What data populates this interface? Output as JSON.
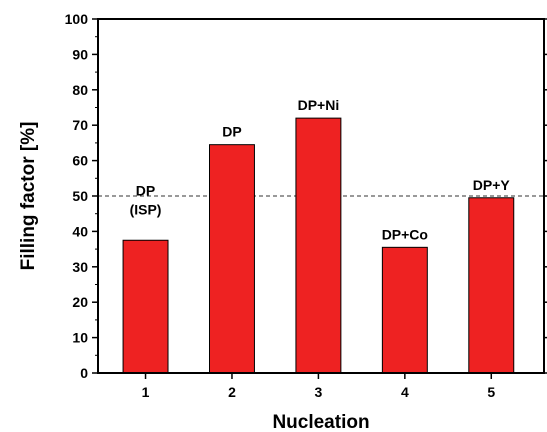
{
  "chart_data": {
    "type": "bar",
    "xlabel": "Nucleation",
    "ylabel": "Filling factor  [%]",
    "ylim": [
      0,
      100
    ],
    "yticks": [
      0,
      10,
      20,
      30,
      40,
      50,
      60,
      70,
      80,
      90,
      100
    ],
    "categories": [
      "1",
      "2",
      "3",
      "4",
      "5"
    ],
    "values": [
      37.5,
      64.5,
      72,
      35.5,
      49.5
    ],
    "bar_labels": [
      [
        "DP",
        "(ISP)"
      ],
      [
        "DP"
      ],
      [
        "DP+Ni"
      ],
      [
        "DP+Co"
      ],
      [
        "DP+Y"
      ]
    ],
    "reference_line": {
      "y": 50,
      "style": "dashed"
    },
    "bar_color": "#ee2222",
    "grid": false
  }
}
